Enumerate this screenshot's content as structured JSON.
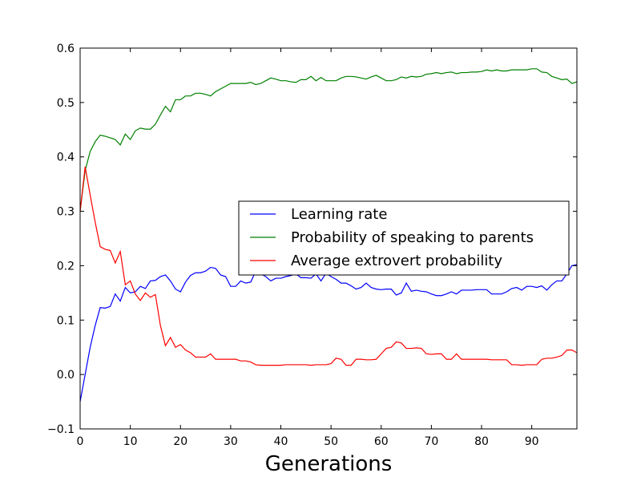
{
  "chart_data": {
    "type": "line",
    "title": "",
    "xlabel": "Generations",
    "ylabel": "",
    "xlim": [
      0,
      99
    ],
    "ylim": [
      -0.1,
      0.6
    ],
    "xticks": [
      0,
      10,
      20,
      30,
      40,
      50,
      60,
      70,
      80,
      90
    ],
    "yticks": [
      -0.1,
      0.0,
      0.1,
      0.2,
      0.3,
      0.4,
      0.5,
      0.6
    ],
    "xtick_labels": [
      "0",
      "10",
      "20",
      "30",
      "40",
      "50",
      "60",
      "70",
      "80",
      "90"
    ],
    "ytick_labels": [
      "−0.1",
      "0.0",
      "0.1",
      "0.2",
      "0.3",
      "0.4",
      "0.5",
      "0.6"
    ],
    "grid": false,
    "legend_position": "center-right",
    "x": [
      0,
      1,
      2,
      3,
      4,
      5,
      6,
      7,
      8,
      9,
      10,
      11,
      12,
      13,
      14,
      15,
      16,
      17,
      18,
      19,
      20,
      21,
      22,
      23,
      24,
      25,
      26,
      27,
      28,
      29,
      30,
      31,
      32,
      33,
      34,
      35,
      36,
      37,
      38,
      39,
      40,
      41,
      42,
      43,
      44,
      45,
      46,
      47,
      48,
      49,
      50,
      51,
      52,
      53,
      54,
      55,
      56,
      57,
      58,
      59,
      60,
      61,
      62,
      63,
      64,
      65,
      66,
      67,
      68,
      69,
      70,
      71,
      72,
      73,
      74,
      75,
      76,
      77,
      78,
      79,
      80,
      81,
      82,
      83,
      84,
      85,
      86,
      87,
      88,
      89,
      90,
      91,
      92,
      93,
      94,
      95,
      96,
      97,
      98,
      99
    ],
    "series": [
      {
        "name": "Learning rate",
        "color": "#0000ff",
        "values": [
          -0.05,
          0.0,
          0.05,
          0.09,
          0.123,
          0.122,
          0.125,
          0.148,
          0.135,
          0.16,
          0.15,
          0.152,
          0.162,
          0.158,
          0.172,
          0.173,
          0.18,
          0.183,
          0.172,
          0.157,
          0.152,
          0.17,
          0.182,
          0.187,
          0.187,
          0.19,
          0.197,
          0.195,
          0.183,
          0.18,
          0.162,
          0.162,
          0.172,
          0.168,
          0.17,
          0.19,
          0.185,
          0.18,
          0.172,
          0.177,
          0.177,
          0.18,
          0.182,
          0.185,
          0.178,
          0.178,
          0.177,
          0.185,
          0.172,
          0.186,
          0.18,
          0.175,
          0.168,
          0.168,
          0.163,
          0.157,
          0.16,
          0.168,
          0.16,
          0.157,
          0.156,
          0.157,
          0.157,
          0.146,
          0.15,
          0.168,
          0.153,
          0.155,
          0.153,
          0.152,
          0.148,
          0.145,
          0.145,
          0.148,
          0.152,
          0.148,
          0.155,
          0.155,
          0.155,
          0.156,
          0.156,
          0.156,
          0.148,
          0.148,
          0.148,
          0.152,
          0.158,
          0.16,
          0.155,
          0.162,
          0.162,
          0.16,
          0.163,
          0.155,
          0.165,
          0.172,
          0.172,
          0.185,
          0.2,
          0.202
        ]
      },
      {
        "name": "Probability of speaking to parents",
        "color": "#008000",
        "values": [
          0.3,
          0.375,
          0.41,
          0.428,
          0.44,
          0.438,
          0.435,
          0.432,
          0.422,
          0.442,
          0.432,
          0.448,
          0.453,
          0.451,
          0.451,
          0.46,
          0.477,
          0.493,
          0.483,
          0.505,
          0.505,
          0.512,
          0.512,
          0.517,
          0.517,
          0.515,
          0.512,
          0.52,
          0.525,
          0.53,
          0.535,
          0.535,
          0.535,
          0.535,
          0.537,
          0.533,
          0.535,
          0.54,
          0.545,
          0.543,
          0.54,
          0.54,
          0.538,
          0.537,
          0.542,
          0.542,
          0.548,
          0.54,
          0.546,
          0.54,
          0.54,
          0.54,
          0.545,
          0.548,
          0.548,
          0.547,
          0.545,
          0.543,
          0.547,
          0.55,
          0.545,
          0.54,
          0.54,
          0.542,
          0.547,
          0.545,
          0.548,
          0.547,
          0.548,
          0.552,
          0.553,
          0.555,
          0.553,
          0.555,
          0.556,
          0.553,
          0.555,
          0.555,
          0.556,
          0.556,
          0.557,
          0.56,
          0.558,
          0.56,
          0.558,
          0.558,
          0.56,
          0.56,
          0.56,
          0.56,
          0.562,
          0.562,
          0.556,
          0.555,
          0.548,
          0.545,
          0.542,
          0.543,
          0.535,
          0.538
        ]
      },
      {
        "name": "Average extrovert probability",
        "color": "#ff0000",
        "values": [
          0.3,
          0.382,
          0.33,
          0.28,
          0.235,
          0.23,
          0.228,
          0.205,
          0.226,
          0.165,
          0.172,
          0.148,
          0.136,
          0.15,
          0.142,
          0.147,
          0.09,
          0.053,
          0.068,
          0.05,
          0.055,
          0.045,
          0.04,
          0.032,
          0.032,
          0.032,
          0.038,
          0.028,
          0.028,
          0.028,
          0.028,
          0.028,
          0.025,
          0.025,
          0.023,
          0.018,
          0.017,
          0.017,
          0.017,
          0.017,
          0.017,
          0.018,
          0.018,
          0.018,
          0.018,
          0.018,
          0.017,
          0.018,
          0.018,
          0.018,
          0.02,
          0.03,
          0.028,
          0.017,
          0.017,
          0.028,
          0.028,
          0.027,
          0.027,
          0.028,
          0.038,
          0.048,
          0.05,
          0.06,
          0.058,
          0.048,
          0.048,
          0.049,
          0.048,
          0.038,
          0.037,
          0.038,
          0.038,
          0.028,
          0.028,
          0.038,
          0.028,
          0.028,
          0.028,
          0.028,
          0.028,
          0.028,
          0.027,
          0.027,
          0.027,
          0.027,
          0.018,
          0.018,
          0.017,
          0.018,
          0.018,
          0.018,
          0.028,
          0.03,
          0.03,
          0.032,
          0.035,
          0.045,
          0.045,
          0.04
        ]
      }
    ]
  }
}
